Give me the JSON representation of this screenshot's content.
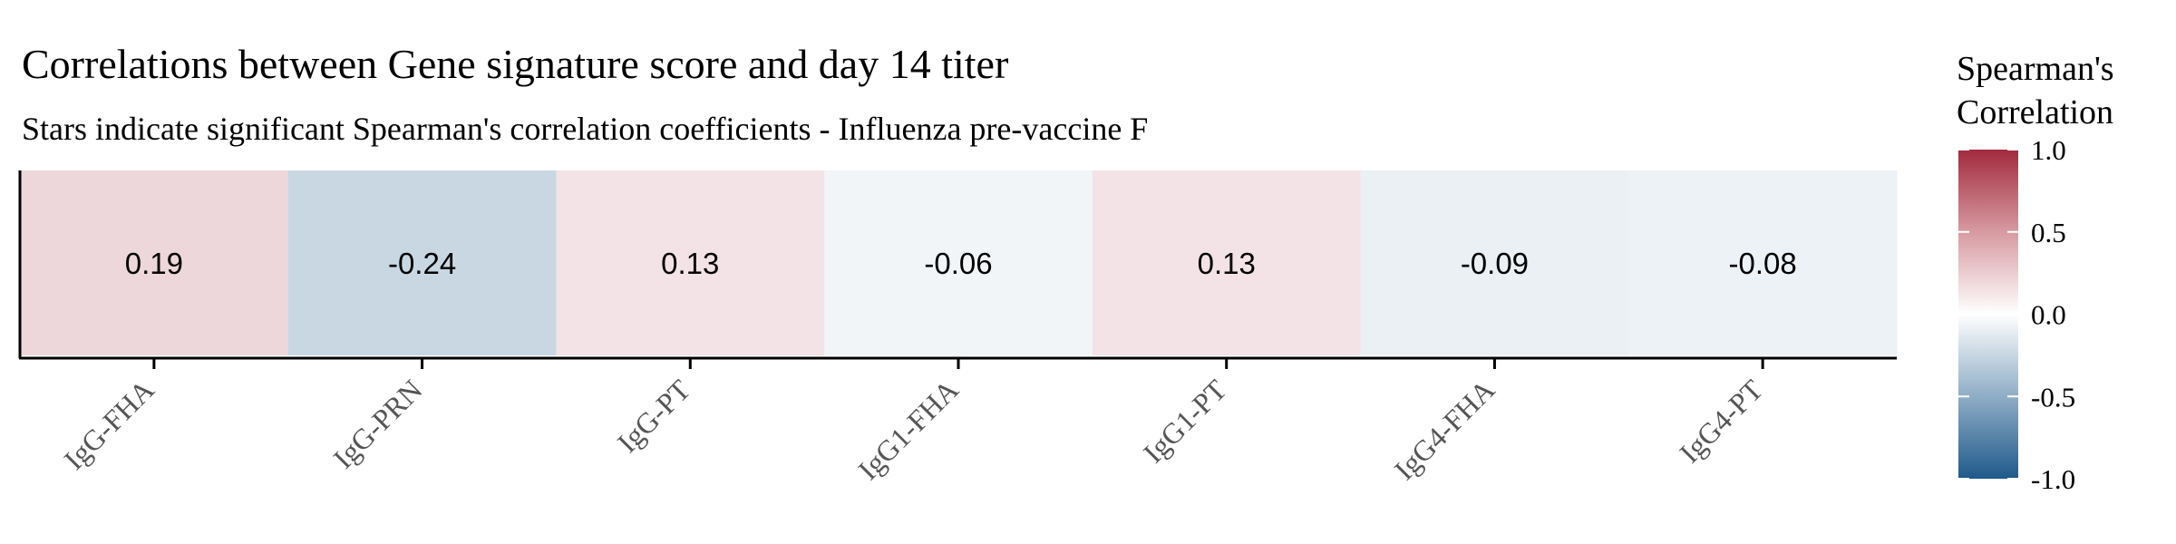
{
  "chart_data": {
    "type": "heatmap",
    "title": "Correlations between Gene signature score and day 14 titer",
    "subtitle": "Stars indicate significant Spearman's correlation coefficients - Influenza pre-vaccine F",
    "categories": [
      "IgG-FHA",
      "IgG-PRN",
      "IgG-PT",
      "IgG1-FHA",
      "IgG1-PT",
      "IgG4-FHA",
      "IgG4-PT"
    ],
    "values": [
      0.19,
      -0.24,
      0.13,
      -0.06,
      0.13,
      -0.09,
      -0.08
    ],
    "value_labels": [
      "0.19",
      "-0.24",
      "0.13",
      "-0.06",
      "0.13",
      "-0.09",
      "-0.08"
    ],
    "xlabel": "",
    "ylabel": "",
    "legend": {
      "title_line1": "Spearman's",
      "title_line2": "Correlation",
      "range": [
        -1.0,
        1.0
      ],
      "ticks": [
        1.0,
        0.5,
        0.0,
        -0.5,
        -1.0
      ],
      "tick_labels": [
        "1.0",
        "0.5",
        "0.0",
        "-0.5",
        "-1.0"
      ],
      "placement": "right"
    },
    "colors": {
      "low": "#1f5a8a",
      "mid": "#ffffff",
      "high": "#a22a3e"
    }
  }
}
